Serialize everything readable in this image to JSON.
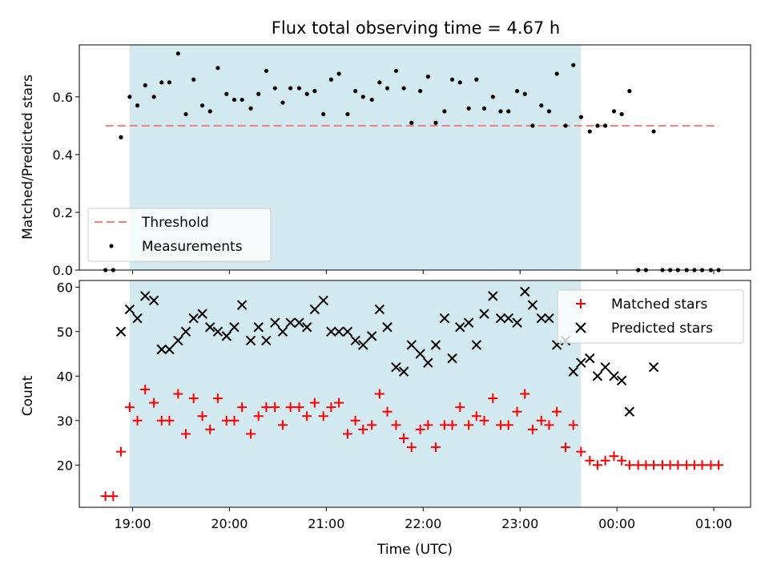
{
  "chart_data": [
    {
      "type": "scatter",
      "title": "Flux total observing time = 4.67 h",
      "ylabel": "Matched/Predicted stars",
      "xlabel": "",
      "ylim": [
        0,
        0.78
      ],
      "yticks": [
        0.0,
        0.2,
        0.4,
        0.6
      ],
      "ytick_labels": [
        "0.0",
        "0.2",
        "0.4",
        "0.6"
      ],
      "xlim_hours": [
        18.45,
        25.38
      ],
      "threshold": 0.5,
      "observing_window_hours": [
        18.97,
        23.63
      ],
      "legend_location": "lower-left",
      "legend": [
        "Threshold",
        "Measurements"
      ],
      "colors": {
        "threshold": "#f08080",
        "measurements": "#000000",
        "window": "#d3eaf0"
      },
      "series": [
        {
          "name": "Measurements",
          "x": [
            18.72,
            18.8,
            18.88,
            18.97,
            19.05,
            19.13,
            19.22,
            19.3,
            19.38,
            19.47,
            19.55,
            19.63,
            19.72,
            19.8,
            19.88,
            19.97,
            20.05,
            20.13,
            20.22,
            20.3,
            20.38,
            20.47,
            20.55,
            20.63,
            20.72,
            20.8,
            20.88,
            20.97,
            21.05,
            21.13,
            21.22,
            21.3,
            21.38,
            21.47,
            21.55,
            21.63,
            21.72,
            21.8,
            21.88,
            21.97,
            22.05,
            22.13,
            22.22,
            22.3,
            22.38,
            22.47,
            22.55,
            22.63,
            22.72,
            22.8,
            22.88,
            22.97,
            23.05,
            23.13,
            23.22,
            23.3,
            23.38,
            23.47,
            23.55,
            23.63,
            23.72,
            23.8,
            23.88,
            23.97,
            24.05,
            24.13,
            24.22,
            24.3,
            24.38,
            24.47,
            24.55,
            24.63,
            24.72,
            24.8,
            24.88,
            24.97,
            25.05
          ],
          "y": [
            0,
            0,
            0.46,
            0.6,
            0.57,
            0.64,
            0.6,
            0.65,
            0.65,
            0.75,
            0.54,
            0.66,
            0.57,
            0.55,
            0.7,
            0.61,
            0.59,
            0.59,
            0.56,
            0.61,
            0.69,
            0.63,
            0.58,
            0.63,
            0.63,
            0.61,
            0.62,
            0.54,
            0.66,
            0.68,
            0.54,
            0.62,
            0.6,
            0.59,
            0.65,
            0.63,
            0.69,
            0.63,
            0.51,
            0.62,
            0.67,
            0.51,
            0.55,
            0.66,
            0.65,
            0.56,
            0.66,
            0.56,
            0.6,
            0.55,
            0.55,
            0.62,
            0.61,
            0.5,
            0.57,
            0.55,
            0.68,
            0.5,
            0.71,
            0.53,
            0.48,
            0.5,
            0.5,
            0.55,
            0.54,
            0.62,
            0,
            0,
            0.48,
            0,
            0,
            0,
            0,
            0,
            0,
            0,
            0
          ]
        }
      ]
    },
    {
      "type": "scatter",
      "title": "",
      "ylabel": "Count",
      "xlabel": "Time (UTC)",
      "ylim": [
        10.5,
        61.5
      ],
      "yticks": [
        20,
        30,
        40,
        50,
        60
      ],
      "ytick_labels": [
        "20",
        "30",
        "40",
        "50",
        "60"
      ],
      "xlim_hours": [
        18.45,
        25.38
      ],
      "xticks_hours": [
        19,
        20,
        21,
        22,
        23,
        24,
        25
      ],
      "xtick_labels": [
        "19:00",
        "20:00",
        "21:00",
        "22:00",
        "23:00",
        "00:00",
        "01:00"
      ],
      "observing_window_hours": [
        18.97,
        23.63
      ],
      "legend_location": "upper-right",
      "legend": [
        "Matched stars",
        "Predicted stars"
      ],
      "colors": {
        "matched": "#ff0000",
        "predicted": "#000000",
        "window": "#d3eaf0"
      },
      "series": [
        {
          "name": "Matched stars",
          "x": [
            18.72,
            18.8,
            18.88,
            18.97,
            19.05,
            19.13,
            19.22,
            19.3,
            19.38,
            19.47,
            19.55,
            19.63,
            19.72,
            19.8,
            19.88,
            19.97,
            20.05,
            20.13,
            20.22,
            20.3,
            20.38,
            20.47,
            20.55,
            20.63,
            20.72,
            20.8,
            20.88,
            20.97,
            21.05,
            21.13,
            21.22,
            21.3,
            21.38,
            21.47,
            21.55,
            21.63,
            21.72,
            21.8,
            21.88,
            21.97,
            22.05,
            22.13,
            22.22,
            22.3,
            22.38,
            22.47,
            22.55,
            22.63,
            22.72,
            22.8,
            22.88,
            22.97,
            23.05,
            23.13,
            23.22,
            23.3,
            23.38,
            23.47,
            23.55,
            23.63,
            23.72,
            23.8,
            23.88,
            23.97,
            24.05,
            24.13,
            24.22,
            24.3,
            24.38,
            24.47,
            24.55,
            24.63,
            24.72,
            24.8,
            24.88,
            24.97,
            25.05
          ],
          "y": [
            13,
            13,
            23,
            33,
            30,
            37,
            34,
            30,
            30,
            36,
            27,
            35,
            31,
            28,
            35,
            30,
            30,
            33,
            27,
            31,
            33,
            33,
            29,
            33,
            33,
            31,
            34,
            31,
            33,
            34,
            27,
            30,
            28,
            29,
            36,
            32,
            29,
            26,
            24,
            28,
            29,
            24,
            29,
            29,
            33,
            29,
            31,
            30,
            35,
            29,
            29,
            32,
            36,
            28,
            30,
            29,
            32,
            24,
            29,
            23,
            21,
            20,
            21,
            22,
            21,
            20,
            20,
            20,
            20,
            20,
            20,
            20,
            20,
            20,
            20,
            20,
            20
          ]
        },
        {
          "name": "Predicted stars",
          "x": [
            18.88,
            18.97,
            19.05,
            19.13,
            19.22,
            19.3,
            19.38,
            19.47,
            19.55,
            19.63,
            19.72,
            19.8,
            19.88,
            19.97,
            20.05,
            20.13,
            20.22,
            20.3,
            20.38,
            20.47,
            20.55,
            20.63,
            20.72,
            20.8,
            20.88,
            20.97,
            21.05,
            21.13,
            21.22,
            21.3,
            21.38,
            21.47,
            21.55,
            21.63,
            21.72,
            21.8,
            21.88,
            21.97,
            22.05,
            22.13,
            22.22,
            22.3,
            22.38,
            22.47,
            22.55,
            22.63,
            22.72,
            22.8,
            22.88,
            22.97,
            23.05,
            23.13,
            23.22,
            23.3,
            23.38,
            23.47,
            23.55,
            23.63,
            23.72,
            23.8,
            23.88,
            23.97,
            24.05,
            24.13,
            24.38
          ],
          "y": [
            50,
            55,
            53,
            58,
            57,
            46,
            46,
            48,
            50,
            53,
            54,
            51,
            50,
            49,
            51,
            56,
            48,
            51,
            48,
            52,
            50,
            52,
            52,
            51,
            55,
            57,
            50,
            50,
            50,
            48,
            47,
            49,
            55,
            51,
            42,
            41,
            47,
            45,
            43,
            47,
            53,
            44,
            51,
            52,
            47,
            54,
            58,
            53,
            53,
            52,
            59,
            56,
            53,
            53,
            47,
            48,
            41,
            43,
            44,
            40,
            42,
            40,
            39,
            32,
            42
          ]
        }
      ]
    }
  ]
}
